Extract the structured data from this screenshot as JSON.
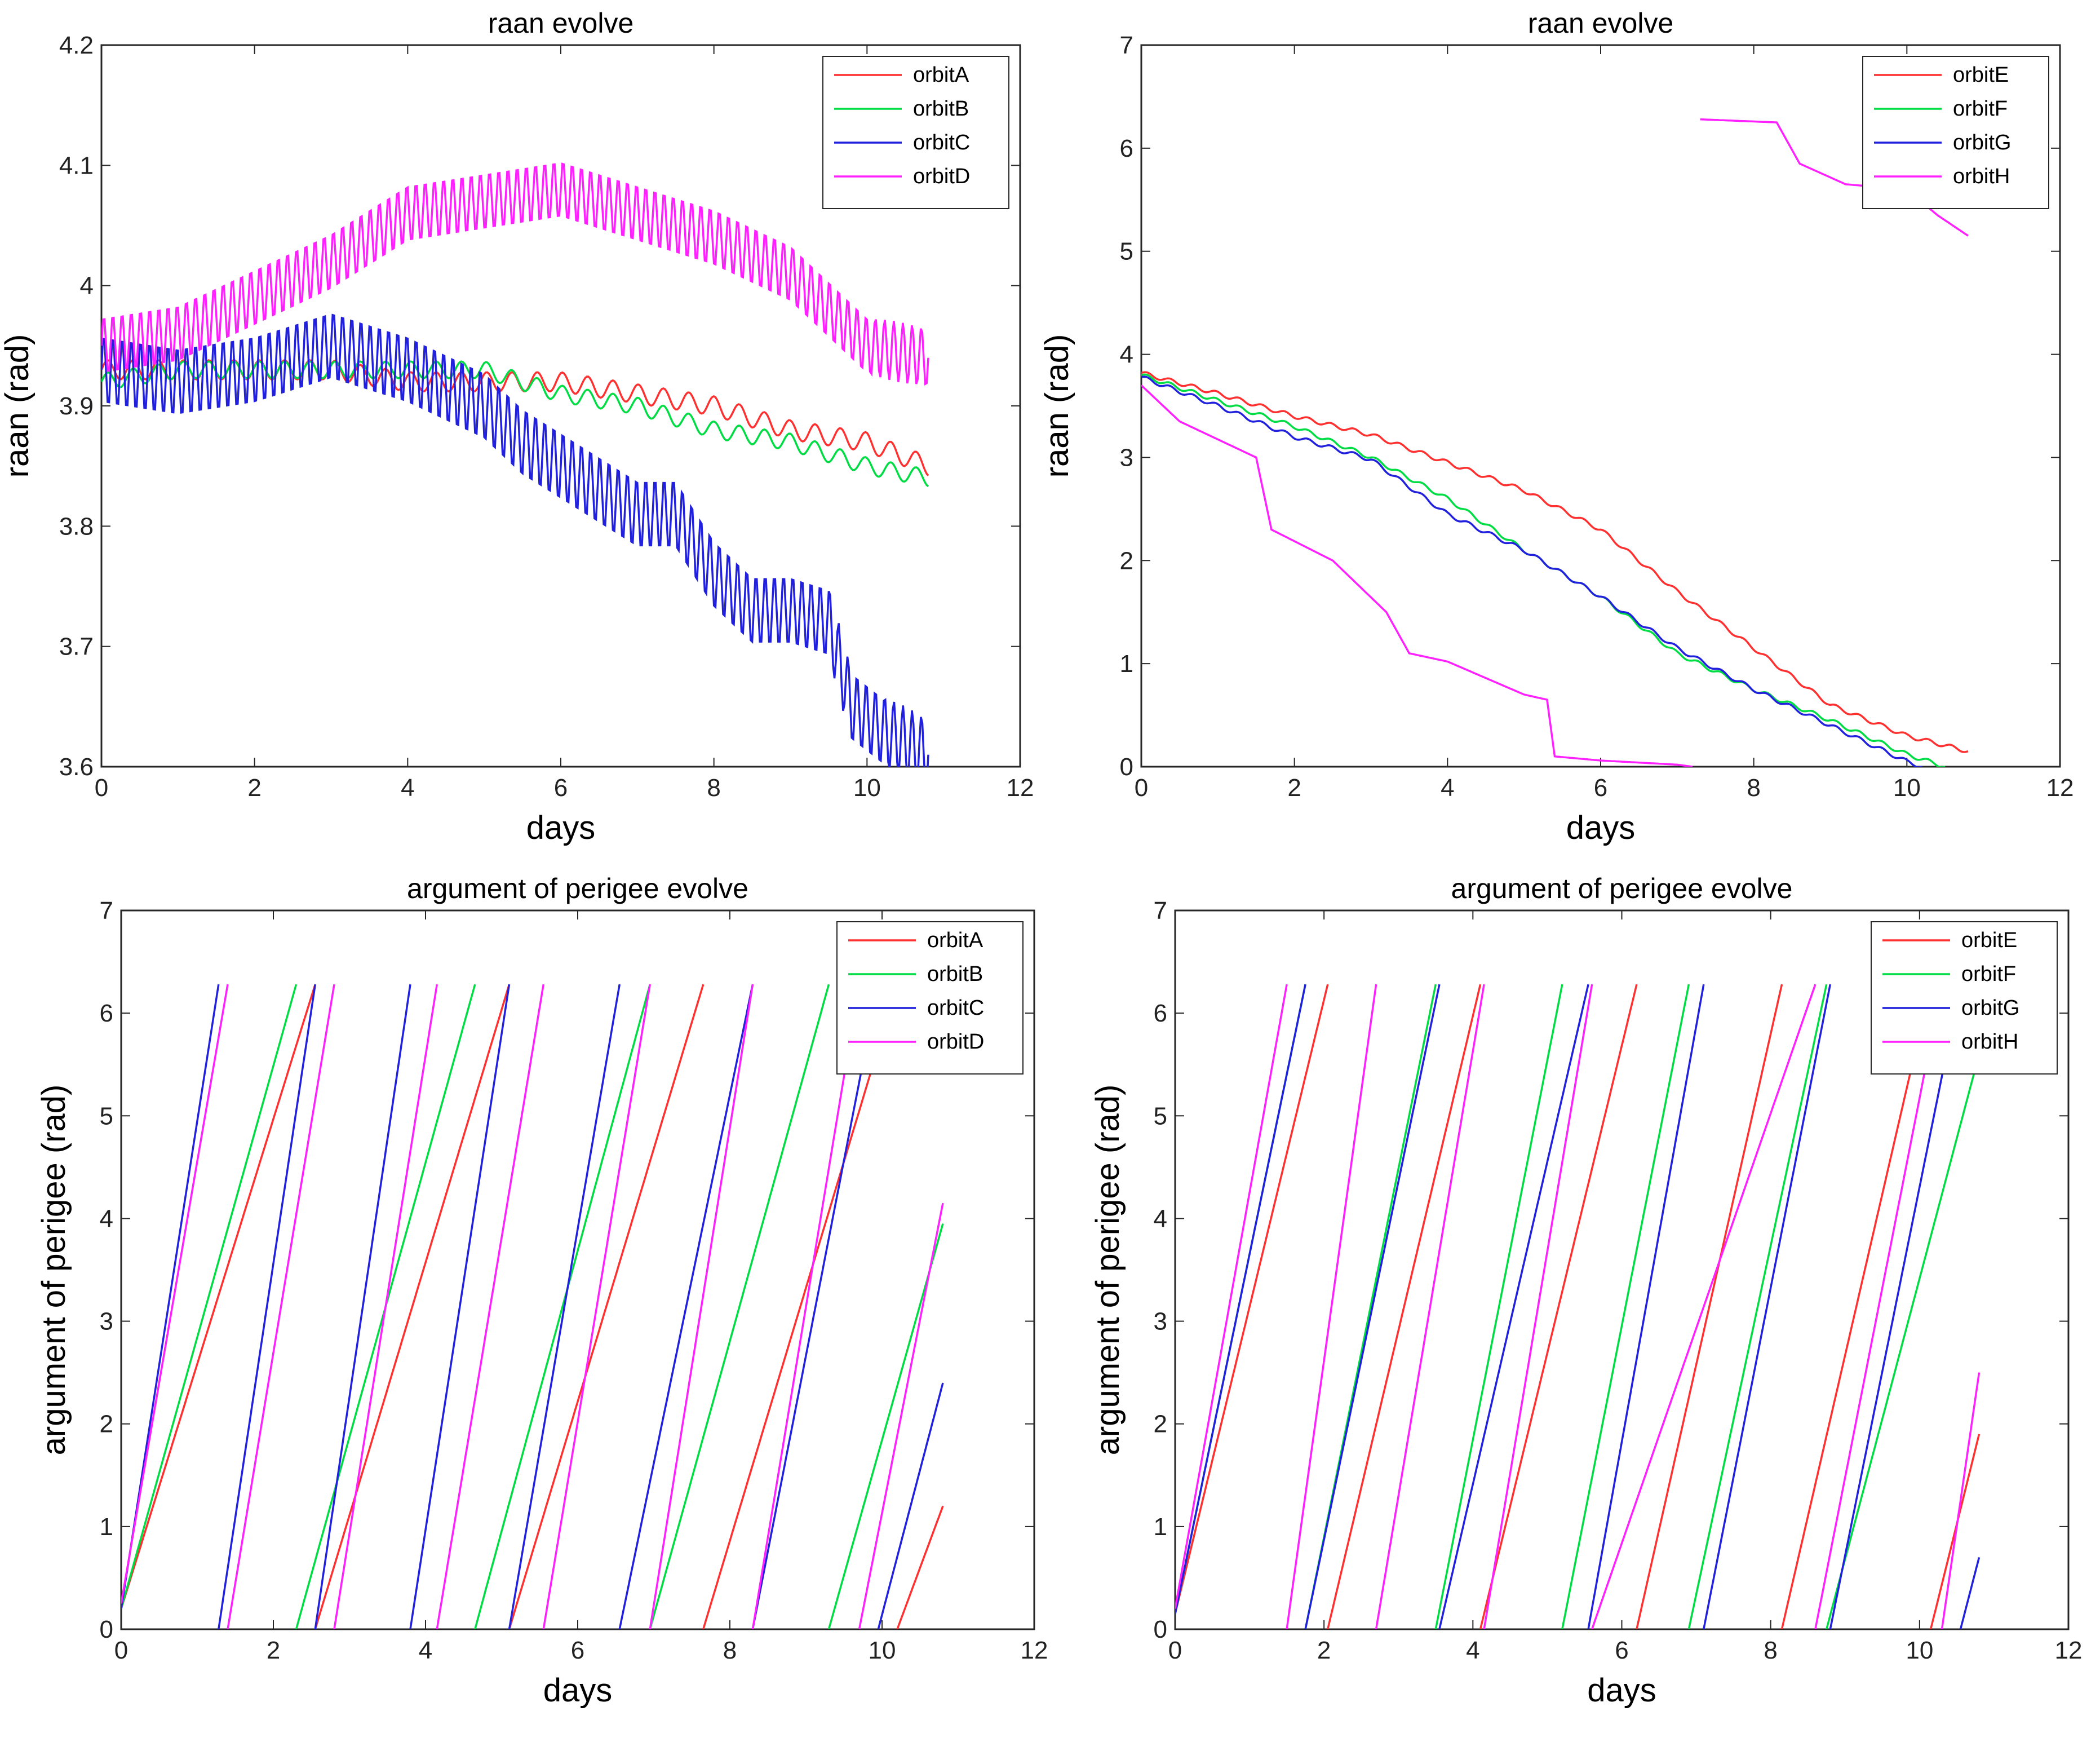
{
  "chart_data": [
    {
      "type": "line",
      "title": "raan evolve",
      "xlabel": "days",
      "ylabel": "raan (rad)",
      "xlim": [
        0,
        12
      ],
      "ylim": [
        3.6,
        4.2
      ],
      "xticks": [
        0,
        2,
        4,
        6,
        8,
        10,
        12
      ],
      "yticks": [
        3.6,
        3.7,
        3.8,
        3.9,
        4,
        4.1,
        4.2
      ],
      "legend_position": "top-right",
      "series": [
        {
          "name": "orbitA",
          "color": "#ff3030",
          "oscillation": 0.008,
          "period": 0.33,
          "x": [
            0,
            1,
            2,
            3,
            4,
            5,
            6,
            7,
            8,
            9,
            10,
            10.8
          ],
          "y": [
            3.93,
            3.93,
            3.93,
            3.93,
            3.92,
            3.92,
            3.92,
            3.91,
            3.9,
            3.88,
            3.87,
            3.85
          ]
        },
        {
          "name": "orbitB",
          "color": "#00dd44",
          "oscillation": 0.007,
          "period": 0.33,
          "x": [
            0,
            1,
            2,
            3,
            4,
            5,
            6,
            7,
            8,
            9,
            10,
            10.8
          ],
          "y": [
            3.92,
            3.93,
            3.93,
            3.93,
            3.93,
            3.93,
            3.91,
            3.9,
            3.88,
            3.87,
            3.85,
            3.84
          ]
        },
        {
          "name": "orbitC",
          "color": "#2020dd",
          "oscillation": 0.03,
          "period": 0.12,
          "x": [
            0,
            1,
            2,
            3,
            4,
            5,
            5.5,
            6,
            7,
            7.5,
            8,
            8.5,
            9,
            9.5,
            9.8,
            10.2,
            10.8
          ],
          "y": [
            3.93,
            3.92,
            3.93,
            3.95,
            3.93,
            3.9,
            3.87,
            3.85,
            3.81,
            3.81,
            3.76,
            3.73,
            3.73,
            3.72,
            3.65,
            3.63,
            3.61
          ]
        },
        {
          "name": "orbitD",
          "color": "#ff20ff",
          "oscillation": 0.025,
          "period": 0.12,
          "x": [
            0,
            1,
            2,
            3,
            4,
            5,
            6,
            7,
            8,
            9,
            10,
            10.8
          ],
          "y": [
            3.95,
            3.96,
            3.99,
            4.02,
            4.06,
            4.07,
            4.08,
            4.06,
            4.04,
            4.01,
            3.95,
            3.94
          ]
        }
      ]
    },
    {
      "type": "line",
      "title": "raan evolve",
      "xlabel": "days",
      "ylabel": "raan (rad)",
      "xlim": [
        0,
        12
      ],
      "ylim": [
        0,
        7
      ],
      "xticks": [
        0,
        2,
        4,
        6,
        8,
        10,
        12
      ],
      "yticks": [
        0,
        1,
        2,
        3,
        4,
        5,
        6,
        7
      ],
      "legend_position": "top-right",
      "series": [
        {
          "name": "orbitE",
          "color": "#ff3030",
          "oscillation": 0.02,
          "period": 0.3,
          "x": [
            0,
            1,
            2,
            3,
            4,
            5,
            6,
            7,
            8,
            9,
            10,
            10.8
          ],
          "y": [
            3.82,
            3.62,
            3.4,
            3.22,
            2.95,
            2.68,
            2.3,
            1.7,
            1.15,
            0.6,
            0.3,
            0.15
          ]
        },
        {
          "name": "orbitF",
          "color": "#00dd44",
          "oscillation": 0.02,
          "period": 0.3,
          "x": [
            0,
            1,
            2,
            3,
            4,
            5,
            6,
            7,
            8,
            9,
            10,
            10.5
          ],
          "y": [
            3.8,
            3.55,
            3.3,
            3.0,
            2.6,
            2.1,
            1.65,
            1.1,
            0.75,
            0.45,
            0.12,
            0.0
          ]
        },
        {
          "name": "orbitG",
          "color": "#2020dd",
          "oscillation": 0.02,
          "period": 0.3,
          "x": [
            0,
            1,
            2,
            3,
            4,
            5,
            6,
            7,
            8,
            9,
            10,
            10.2
          ],
          "y": [
            3.78,
            3.5,
            3.2,
            2.98,
            2.45,
            2.1,
            1.65,
            1.15,
            0.75,
            0.4,
            0.05,
            0.0
          ]
        },
        {
          "name": "orbitH",
          "color": "#ff20ff",
          "oscillation": 0.0,
          "period": 0.3,
          "x": [
            0,
            0.5,
            1.5,
            1.7,
            2.5,
            3.2,
            3.5,
            4,
            5,
            5.3,
            5.4,
            6,
            7,
            7.2
          ],
          "y": [
            3.7,
            3.35,
            3.0,
            2.3,
            2.0,
            1.5,
            1.1,
            1.02,
            0.7,
            0.65,
            0.1,
            0.06,
            0.02,
            0.0
          ]
        },
        {
          "name": "",
          "color": "#ff20ff",
          "oscillation": 0.0,
          "period": 0.3,
          "x": [
            7.3,
            8.3,
            8.6,
            9.2,
            10,
            10.4,
            10.8
          ],
          "y": [
            6.28,
            6.25,
            5.85,
            5.65,
            5.6,
            5.35,
            5.15
          ]
        }
      ]
    },
    {
      "type": "line",
      "title": "argument of perigee evolve",
      "xlabel": "days",
      "ylabel": "argument of perigee (rad)",
      "xlim": [
        0,
        12
      ],
      "ylim": [
        0,
        7
      ],
      "xticks": [
        0,
        2,
        4,
        6,
        8,
        10,
        12
      ],
      "yticks": [
        0,
        1,
        2,
        3,
        4,
        5,
        6,
        7
      ],
      "legend_position": "top-right",
      "series": [
        {
          "name": "orbitA",
          "color": "#ff3030",
          "oscillation": 0.0,
          "period": 0.3,
          "x": [
            0,
            2.55,
            2.55,
            5.1,
            5.1,
            7.65,
            7.65,
            10.2,
            10.2,
            10.8
          ],
          "y": [
            0.2,
            6.28,
            0,
            6.28,
            0,
            6.28,
            0,
            6.28,
            0,
            1.2
          ]
        },
        {
          "name": "orbitB",
          "color": "#00dd44",
          "oscillation": 0.0,
          "period": 0.3,
          "x": [
            0,
            2.3,
            2.3,
            4.65,
            4.65,
            6.95,
            6.95,
            9.3,
            9.3,
            10.8
          ],
          "y": [
            0.2,
            6.28,
            0,
            6.28,
            0,
            6.28,
            0,
            6.28,
            0,
            3.95
          ]
        },
        {
          "name": "orbitC",
          "color": "#2020dd",
          "oscillation": 0.0,
          "period": 0.3,
          "x": [
            0,
            1.28,
            1.28,
            2.55,
            2.55,
            3.8,
            3.8,
            5.1,
            5.1,
            6.55,
            6.55,
            8.3,
            8.3,
            9.95,
            9.95,
            10.8
          ],
          "y": [
            0.2,
            6.28,
            0,
            6.28,
            0,
            6.28,
            0,
            6.28,
            0,
            6.28,
            0,
            6.28,
            0,
            6.28,
            0,
            2.4
          ]
        },
        {
          "name": "orbitD",
          "color": "#ff20ff",
          "oscillation": 0.0,
          "period": 0.3,
          "x": [
            0,
            1.4,
            1.4,
            2.8,
            2.8,
            4.15,
            4.15,
            5.55,
            5.55,
            6.95,
            6.95,
            8.3,
            8.3,
            9.7,
            9.7,
            10.8
          ],
          "y": [
            0.25,
            6.28,
            0,
            6.28,
            0,
            6.28,
            0,
            6.28,
            0,
            6.28,
            0,
            6.28,
            0,
            6.28,
            0,
            4.15
          ]
        }
      ]
    },
    {
      "type": "line",
      "title": "argument of perigee evolve",
      "xlabel": "days",
      "ylabel": "argument of perigee (rad)",
      "xlim": [
        0,
        12
      ],
      "ylim": [
        0,
        7
      ],
      "xticks": [
        0,
        2,
        4,
        6,
        8,
        10,
        12
      ],
      "yticks": [
        0,
        1,
        2,
        3,
        4,
        5,
        6,
        7
      ],
      "legend_position": "top-right",
      "series": [
        {
          "name": "orbitE",
          "color": "#ff3030",
          "oscillation": 0.0,
          "period": 0.3,
          "x": [
            0,
            2.05,
            2.05,
            4.1,
            4.1,
            6.2,
            6.2,
            8.15,
            8.15,
            10.15,
            10.15,
            10.8
          ],
          "y": [
            0.15,
            6.28,
            0,
            6.28,
            0,
            6.28,
            0,
            6.28,
            0,
            6.28,
            0,
            1.9
          ]
        },
        {
          "name": "orbitF",
          "color": "#00dd44",
          "oscillation": 0.0,
          "period": 0.3,
          "x": [
            0,
            1.75,
            1.75,
            3.5,
            3.5,
            5.2,
            5.2,
            6.9,
            6.9,
            8.75,
            8.75,
            10.8
          ],
          "y": [
            0.15,
            6.28,
            0,
            6.28,
            0,
            6.28,
            0,
            6.28,
            0,
            6.28,
            0,
            5.6
          ]
        },
        {
          "name": "orbitG",
          "color": "#2020dd",
          "oscillation": 0.0,
          "period": 0.3,
          "x": [
            0,
            1.75,
            1.75,
            3.55,
            3.55,
            5.55,
            5.55,
            7.1,
            7.1,
            8.8,
            8.8,
            10.55,
            10.55,
            10.8
          ],
          "y": [
            0.15,
            6.28,
            0,
            6.28,
            0,
            6.28,
            0,
            6.28,
            0,
            6.28,
            0,
            6.28,
            0,
            0.7
          ]
        },
        {
          "name": "orbitH",
          "color": "#ff20ff",
          "oscillation": 0.0,
          "period": 0.3,
          "x": [
            0,
            1.5,
            1.5,
            2.7,
            2.7,
            4.15,
            4.15,
            5.6,
            5.6,
            8.6,
            8.6,
            10.3,
            10.3,
            10.8
          ],
          "y": [
            0.2,
            6.28,
            0,
            6.28,
            0,
            6.28,
            0,
            6.28,
            0,
            6.28,
            0,
            6.28,
            0,
            2.5
          ]
        }
      ]
    }
  ]
}
